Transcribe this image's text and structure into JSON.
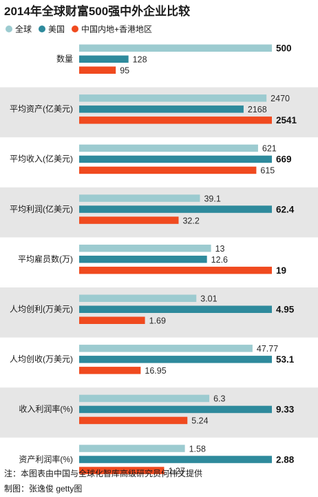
{
  "title": "2014年全球财富500强中外企业比较",
  "colors": {
    "global": "#9ccbd0",
    "usa": "#2e8a9c",
    "china": "#f04a1f",
    "stripe": "#e6e6e6"
  },
  "legend": [
    {
      "name": "全球",
      "color_key": "global"
    },
    {
      "name": "美国",
      "color_key": "usa"
    },
    {
      "name": "中国内地+香港地区",
      "color_key": "china"
    }
  ],
  "notes": {
    "source": "注：本图表由中国与全球化智库高级研究员何伟文提供",
    "credit": "制图：张逸俊 getty图"
  },
  "chart_data": {
    "type": "bar",
    "orientation": "horizontal",
    "series_names": [
      "全球",
      "美国",
      "中国内地+香港地区"
    ],
    "legend_position": "top-left",
    "grid": false,
    "scale": "each category scaled to its own maximum",
    "categories": [
      {
        "label": "数量",
        "values": [
          500,
          128,
          95
        ],
        "display": [
          "500",
          "128",
          "95"
        ],
        "bold": 0
      },
      {
        "label": "平均资产(亿美元)",
        "values": [
          2470,
          2168,
          2541
        ],
        "display": [
          "2470",
          "2168",
          "2541"
        ],
        "bold": 2
      },
      {
        "label": "平均收入(亿美元)",
        "values": [
          621,
          669,
          615
        ],
        "display": [
          "621",
          "669",
          "615"
        ],
        "bold": 1
      },
      {
        "label": "平均利润(亿美元)",
        "values": [
          39.1,
          62.4,
          32.2
        ],
        "display": [
          "39.1",
          "62.4",
          "32.2"
        ],
        "bold": 1
      },
      {
        "label": "平均雇员数(万)",
        "values": [
          13,
          12.6,
          19
        ],
        "display": [
          "13",
          "12.6",
          "19"
        ],
        "bold": 2
      },
      {
        "label": "人均创利(万美元)",
        "values": [
          3.01,
          4.95,
          1.69
        ],
        "display": [
          "3.01",
          "4.95",
          "1.69"
        ],
        "bold": 1
      },
      {
        "label": "人均创收(万美元)",
        "values": [
          47.77,
          53.1,
          16.95
        ],
        "display": [
          "47.77",
          "53.1",
          "16.95"
        ],
        "bold": 1
      },
      {
        "label": "收入利润率(%)",
        "values": [
          6.3,
          9.33,
          5.24
        ],
        "display": [
          "6.3",
          "9.33",
          "5.24"
        ],
        "bold": 1
      },
      {
        "label": "资产利润率(%)",
        "values": [
          1.58,
          2.88,
          1.27
        ],
        "display": [
          "1.58",
          "2.88",
          "1.27"
        ],
        "bold": 1
      }
    ]
  }
}
